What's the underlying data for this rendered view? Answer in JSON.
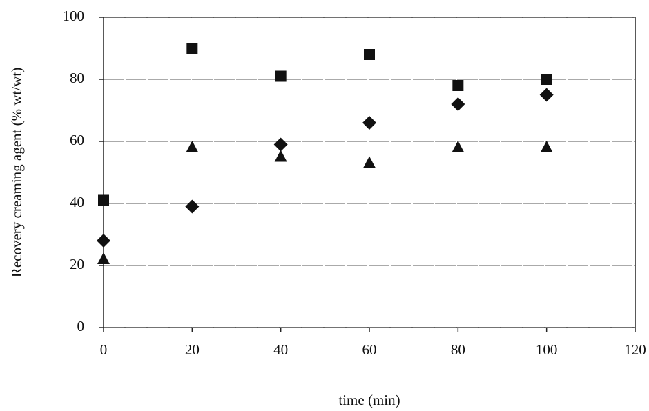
{
  "chart_data": {
    "type": "scatter",
    "x_label": "time (min)",
    "y_label": "Recovery creaming agent (% wt/wt)",
    "x": [
      0,
      20,
      40,
      60,
      80,
      100
    ],
    "series": [
      {
        "marker": "square",
        "color": "#111111",
        "values": [
          41,
          90,
          81,
          88,
          78,
          80
        ]
      },
      {
        "marker": "diamond",
        "color": "#111111",
        "values": [
          28,
          39,
          59,
          66,
          72,
          75
        ]
      },
      {
        "marker": "triangle",
        "color": "#111111",
        "values": [
          22,
          58,
          55,
          53,
          58,
          58
        ]
      }
    ],
    "xlim": [
      0,
      120
    ],
    "xticks": [
      0,
      20,
      40,
      60,
      80,
      100,
      120
    ],
    "ylim": [
      0,
      100
    ],
    "yticks": [
      0,
      20,
      40,
      60,
      80,
      100
    ],
    "grid": true
  }
}
